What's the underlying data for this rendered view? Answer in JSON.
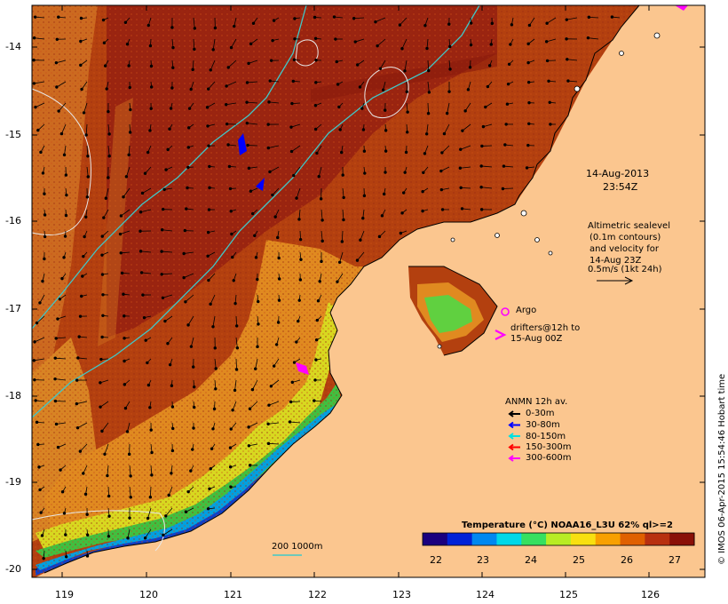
{
  "map": {
    "date_line1": "14-Aug-2013",
    "date_line2": "23:54Z",
    "altimetry": [
      "Altimetric sealevel",
      "(0.1m contours)",
      "and velocity for",
      "14-Aug 23Z",
      "0.5m/s (1kt 24h)"
    ],
    "argo_label": "Argo",
    "drifters": [
      "drifters@12h to",
      "15-Aug 00Z"
    ],
    "anmn_title": "ANMN 12h av.",
    "anmn_items": [
      {
        "label": "0-30m",
        "color": "#000000"
      },
      {
        "label": "30-80m",
        "color": "#0000ff"
      },
      {
        "label": "80-150m",
        "color": "#00e0e0"
      },
      {
        "label": "150-300m",
        "color": "#ff0000"
      },
      {
        "label": "300-600m",
        "color": "#ff00ff"
      }
    ],
    "bathy_label": "200  1000m",
    "lon_ticks": [
      "119",
      "120",
      "121",
      "122",
      "123",
      "124",
      "125",
      "126"
    ],
    "lat_ticks": [
      "-14",
      "-15",
      "-16",
      "-17",
      "-18",
      "-19",
      "-20"
    ],
    "colorbar_title": "Temperature (°C) NOAA16_L3U 62% ql>=2",
    "colorbar_ticks": [
      "22",
      "23",
      "24",
      "25",
      "26",
      "27"
    ],
    "colorbar_colors": [
      "#1a007f",
      "#0022d8",
      "#0088f0",
      "#00d8e8",
      "#36e060",
      "#b8ec24",
      "#f8e010",
      "#f8a000",
      "#e06000",
      "#b83010",
      "#8a1008"
    ],
    "credit": "© IMOS 06-Apr-2015 15:54:46 Hobart time",
    "land_color": "#fbc68f"
  }
}
